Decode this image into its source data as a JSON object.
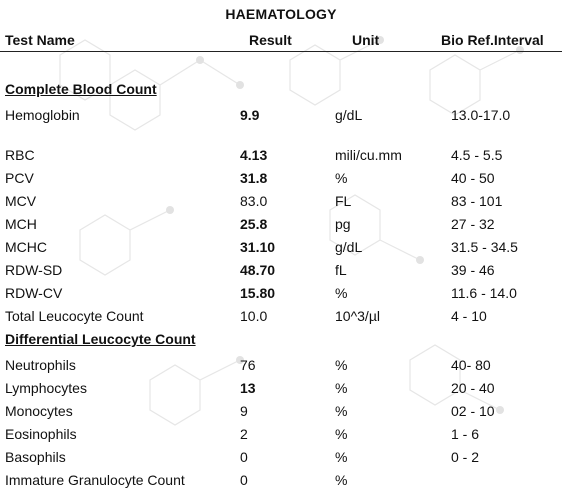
{
  "report": {
    "title": "HAEMATOLOGY",
    "headers": {
      "test_name": "Test Name",
      "result": "Result",
      "unit": "Unit",
      "ref": "Bio Ref.Interval"
    }
  },
  "sections": {
    "cbc": {
      "title": "Complete Blood Count",
      "rows": [
        {
          "name": "Hemoglobin",
          "result": "9.9",
          "unit": "g/dL",
          "ref": "13.0-17.0",
          "abnormal": true
        },
        {
          "name": "RBC",
          "result": "4.13",
          "unit": "mili/cu.mm",
          "ref": "4.5 - 5.5",
          "abnormal": true
        },
        {
          "name": "PCV",
          "result": "31.8",
          "unit": "%",
          "ref": "40 - 50",
          "abnormal": true
        },
        {
          "name": "MCV",
          "result": "83.0",
          "unit": "FL",
          "ref": "83 - 101",
          "abnormal": false
        },
        {
          "name": "MCH",
          "result": "25.8",
          "unit": "pg",
          "ref": "27 - 32",
          "abnormal": true
        },
        {
          "name": "MCHC",
          "result": "31.10",
          "unit": "g/dL",
          "ref": "31.5 - 34.5",
          "abnormal": true
        },
        {
          "name": "RDW-SD",
          "result": "48.70",
          "unit": "fL",
          "ref": "39 - 46",
          "abnormal": true
        },
        {
          "name": "RDW-CV",
          "result": "15.80",
          "unit": "%",
          "ref": "11.6 - 14.0",
          "abnormal": true
        },
        {
          "name": "Total Leucocyte Count",
          "result": "10.0",
          "unit": "10^3/µl",
          "ref": "4 - 10",
          "abnormal": false
        }
      ]
    },
    "dlc": {
      "title": "Differential Leucocyte Count",
      "rows": [
        {
          "name": "Neutrophils",
          "result": "76",
          "unit": "%",
          "ref": "40- 80",
          "abnormal": false
        },
        {
          "name": "Lymphocytes",
          "result": "13",
          "unit": "%",
          "ref": "20 - 40",
          "abnormal": true
        },
        {
          "name": "Monocytes",
          "result": "9",
          "unit": "%",
          "ref": "02 - 10",
          "abnormal": false
        },
        {
          "name": "Eosinophils",
          "result": "2",
          "unit": "%",
          "ref": "1 - 6",
          "abnormal": false
        },
        {
          "name": "Basophils",
          "result": "0",
          "unit": "%",
          "ref": "0 - 2",
          "abnormal": false
        },
        {
          "name": "Immature Granulocyte Count",
          "result": "0",
          "unit": "%",
          "ref": "",
          "abnormal": false
        }
      ]
    }
  }
}
